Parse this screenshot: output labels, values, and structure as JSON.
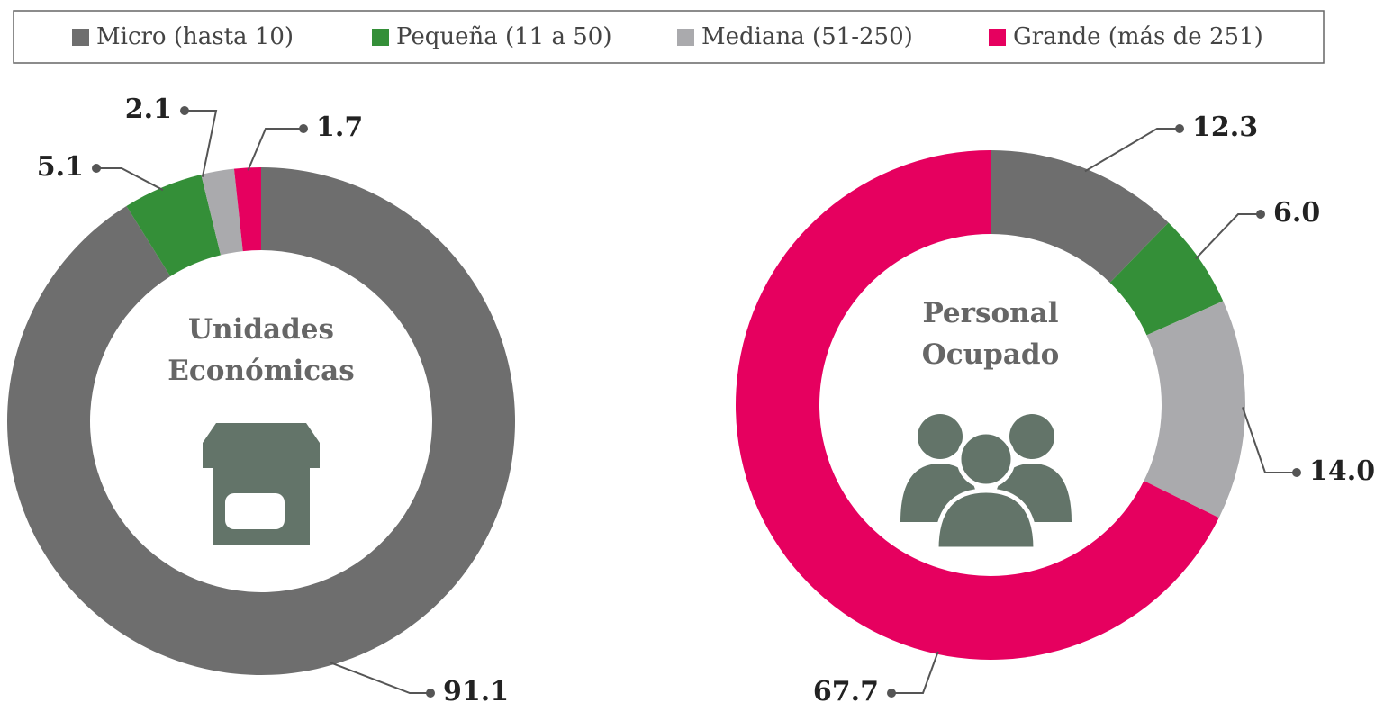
{
  "legend": {
    "categories": [
      "Micro (hasta 10)",
      "Pequeña (11 a 50)",
      "Mediana (51-250)",
      "Grande (más de 251)"
    ],
    "colors": [
      "#6e6e6e",
      "#348f38",
      "#aaaaad",
      "#e6005f"
    ]
  },
  "chart_data": [
    {
      "type": "pie",
      "title": "Unidades Económicas",
      "values": [
        91.1,
        5.1,
        2.1,
        1.7
      ],
      "value_labels": [
        "91.1",
        "5.1",
        "2.1",
        "1.7"
      ]
    },
    {
      "type": "pie",
      "title": "Personal Ocupado",
      "values": [
        12.3,
        6.0,
        14.0,
        67.7
      ],
      "value_labels": [
        "12.3",
        "6.0",
        "14.0",
        "67.7"
      ]
    }
  ]
}
